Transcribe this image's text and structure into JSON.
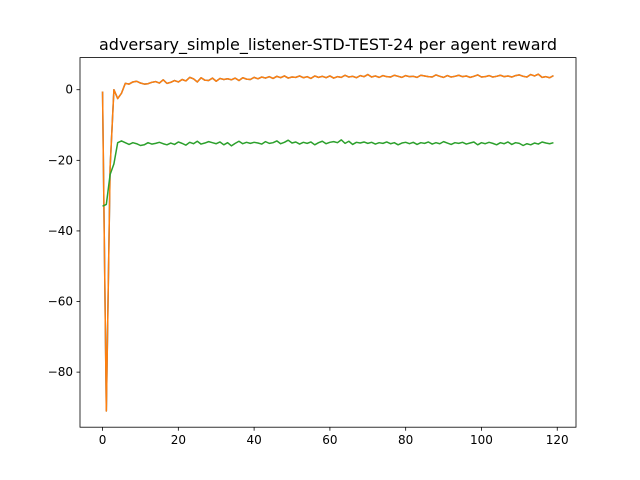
{
  "chart_data": {
    "type": "line",
    "title": "adversary_simple_listener-STD-TEST-24 per agent reward",
    "xlabel": "",
    "ylabel": "",
    "xlim": [
      -5.95,
      124.95
    ],
    "ylim": [
      -95.6,
      9.1
    ],
    "xticks": [
      0,
      20,
      40,
      60,
      80,
      100,
      120
    ],
    "yticks": [
      0,
      -20,
      -40,
      -60,
      -80
    ],
    "xtick_labels": [
      "0",
      "20",
      "40",
      "60",
      "80",
      "100",
      "120"
    ],
    "ytick_labels": [
      "0",
      "−20",
      "−40",
      "−60",
      "−80"
    ],
    "grid": false,
    "legend": "none",
    "series": [
      {
        "color": "#1f77b4",
        "x": [
          0,
          1,
          2,
          3,
          4,
          5,
          6,
          7,
          8,
          9,
          10,
          11,
          12,
          13,
          14,
          15,
          16,
          17,
          18,
          19,
          20,
          21,
          22,
          23,
          24,
          25,
          26,
          27,
          28,
          29,
          30,
          31,
          32,
          33,
          34,
          35,
          36,
          37,
          38,
          39,
          40,
          41,
          42,
          43,
          44,
          45,
          46,
          47,
          48,
          49,
          50,
          51,
          52,
          53,
          54,
          55,
          56,
          57,
          58,
          59,
          60,
          61,
          62,
          63,
          64,
          65,
          66,
          67,
          68,
          69,
          70,
          71,
          72,
          73,
          74,
          75,
          76,
          77,
          78,
          79,
          80,
          81,
          82,
          83,
          84,
          85,
          86,
          87,
          88,
          89,
          90,
          91,
          92,
          93,
          94,
          95,
          96,
          97,
          98,
          99,
          100,
          101,
          102,
          103,
          104,
          105,
          106,
          107,
          108,
          109,
          110,
          111,
          112,
          113,
          114,
          115,
          116,
          117,
          118,
          119
        ],
        "y": [
          -0.5,
          -91,
          -22,
          0,
          -2.5,
          -1,
          1.8,
          1.6,
          2.2,
          2.4,
          1.9,
          1.6,
          1.7,
          2.1,
          2.3,
          1.9,
          2.8,
          1.8,
          2.1,
          2.6,
          2.2,
          2.9,
          2.5,
          3.5,
          3.1,
          2.2,
          3.4,
          2.7,
          2.6,
          3.3,
          2.4,
          3.2,
          2.9,
          3.1,
          2.8,
          3.3,
          2.6,
          3.4,
          3.0,
          2.9,
          3.5,
          3.1,
          3.6,
          3.3,
          3.7,
          3.2,
          3.8,
          3.4,
          3.9,
          3.3,
          3.6,
          3.5,
          3.9,
          3.4,
          3.7,
          3.2,
          3.9,
          3.5,
          3.8,
          3.4,
          3.9,
          3.3,
          3.7,
          3.5,
          4.1,
          3.6,
          3.8,
          3.4,
          4.0,
          3.7,
          4.3,
          3.6,
          3.9,
          3.5,
          4.0,
          3.7,
          3.6,
          4.1,
          3.8,
          3.5,
          4.0,
          3.7,
          3.8,
          3.5,
          4.1,
          3.9,
          3.7,
          3.6,
          4.2,
          3.8,
          3.5,
          4.0,
          3.6,
          3.8,
          4.1,
          3.7,
          3.9,
          3.5,
          3.8,
          4.2,
          3.6,
          3.7,
          4.0,
          3.6,
          3.8,
          4.1,
          3.7,
          3.9,
          3.6,
          4.0,
          4.2,
          3.8,
          3.6,
          4.3,
          3.9,
          4.4,
          3.5,
          3.7,
          3.4,
          4.0
        ]
      },
      {
        "color": "#ff7f0e",
        "x": [
          0,
          1,
          2,
          3,
          4,
          5,
          6,
          7,
          8,
          9,
          10,
          11,
          12,
          13,
          14,
          15,
          16,
          17,
          18,
          19,
          20,
          21,
          22,
          23,
          24,
          25,
          26,
          27,
          28,
          29,
          30,
          31,
          32,
          33,
          34,
          35,
          36,
          37,
          38,
          39,
          40,
          41,
          42,
          43,
          44,
          45,
          46,
          47,
          48,
          49,
          50,
          51,
          52,
          53,
          54,
          55,
          56,
          57,
          58,
          59,
          60,
          61,
          62,
          63,
          64,
          65,
          66,
          67,
          68,
          69,
          70,
          71,
          72,
          73,
          74,
          75,
          76,
          77,
          78,
          79,
          80,
          81,
          82,
          83,
          84,
          85,
          86,
          87,
          88,
          89,
          90,
          91,
          92,
          93,
          94,
          95,
          96,
          97,
          98,
          99,
          100,
          101,
          102,
          103,
          104,
          105,
          106,
          107,
          108,
          109,
          110,
          111,
          112,
          113,
          114,
          115,
          116,
          117,
          118,
          119
        ],
        "y": [
          -0.5,
          -91,
          -22,
          0,
          -2.5,
          -1,
          1.8,
          1.6,
          2.2,
          2.4,
          1.9,
          1.6,
          1.7,
          2.1,
          2.3,
          1.9,
          2.8,
          1.8,
          2.1,
          2.6,
          2.2,
          2.9,
          2.5,
          3.5,
          3.1,
          2.2,
          3.4,
          2.7,
          2.6,
          3.3,
          2.4,
          3.2,
          2.9,
          3.1,
          2.8,
          3.3,
          2.6,
          3.4,
          3.0,
          2.9,
          3.5,
          3.1,
          3.6,
          3.3,
          3.7,
          3.2,
          3.8,
          3.4,
          3.9,
          3.3,
          3.6,
          3.5,
          3.9,
          3.4,
          3.7,
          3.2,
          3.9,
          3.5,
          3.8,
          3.4,
          3.9,
          3.3,
          3.7,
          3.5,
          4.1,
          3.6,
          3.8,
          3.4,
          4.0,
          3.7,
          4.3,
          3.6,
          3.9,
          3.5,
          4.0,
          3.7,
          3.6,
          4.1,
          3.8,
          3.5,
          4.0,
          3.7,
          3.8,
          3.5,
          4.1,
          3.9,
          3.7,
          3.6,
          4.2,
          3.8,
          3.5,
          4.0,
          3.6,
          3.8,
          4.1,
          3.7,
          3.9,
          3.5,
          3.8,
          4.2,
          3.6,
          3.7,
          4.0,
          3.6,
          3.8,
          4.1,
          3.7,
          3.9,
          3.6,
          4.0,
          4.2,
          3.8,
          3.6,
          4.3,
          3.9,
          4.4,
          3.5,
          3.7,
          3.4,
          4.0
        ]
      },
      {
        "color": "#2ca02c",
        "x": [
          0,
          1,
          2,
          3,
          4,
          5,
          6,
          7,
          8,
          9,
          10,
          11,
          12,
          13,
          14,
          15,
          16,
          17,
          18,
          19,
          20,
          21,
          22,
          23,
          24,
          25,
          26,
          27,
          28,
          29,
          30,
          31,
          32,
          33,
          34,
          35,
          36,
          37,
          38,
          39,
          40,
          41,
          42,
          43,
          44,
          45,
          46,
          47,
          48,
          49,
          50,
          51,
          52,
          53,
          54,
          55,
          56,
          57,
          58,
          59,
          60,
          61,
          62,
          63,
          64,
          65,
          66,
          67,
          68,
          69,
          70,
          71,
          72,
          73,
          74,
          75,
          76,
          77,
          78,
          79,
          80,
          81,
          82,
          83,
          84,
          85,
          86,
          87,
          88,
          89,
          90,
          91,
          92,
          93,
          94,
          95,
          96,
          97,
          98,
          99,
          100,
          101,
          102,
          103,
          104,
          105,
          106,
          107,
          108,
          109,
          110,
          111,
          112,
          113,
          114,
          115,
          116,
          117,
          118,
          119
        ],
        "y": [
          -33,
          -32.5,
          -24,
          -21,
          -15,
          -14.5,
          -15,
          -15.5,
          -15,
          -15.3,
          -15.8,
          -15.6,
          -15,
          -15.4,
          -15.2,
          -14.9,
          -15.3,
          -15.6,
          -15.1,
          -15.5,
          -14.8,
          -15.2,
          -15.7,
          -14.9,
          -15.3,
          -14.6,
          -15.4,
          -15.1,
          -14.7,
          -15.0,
          -15.3,
          -14.8,
          -15.6,
          -15.0,
          -15.9,
          -15.2,
          -14.6,
          -15.3,
          -14.9,
          -15.2,
          -14.9,
          -15.1,
          -15.4,
          -14.7,
          -15.2,
          -15.0,
          -14.5,
          -15.3,
          -14.9,
          -14.3,
          -15.1,
          -14.8,
          -15.4,
          -14.9,
          -15.2,
          -14.8,
          -15.6,
          -15.0,
          -14.6,
          -15.3,
          -14.9,
          -14.7,
          -15.0,
          -14.2,
          -15.2,
          -14.6,
          -15.5,
          -14.9,
          -15.1,
          -14.8,
          -15.2,
          -14.9,
          -15.4,
          -15.0,
          -15.2,
          -14.8,
          -15.3,
          -15.0,
          -15.6,
          -15.1,
          -14.9,
          -15.3,
          -14.9,
          -15.5,
          -15.0,
          -15.2,
          -14.8,
          -15.4,
          -15.0,
          -15.3,
          -14.7,
          -15.1,
          -15.5,
          -15.0,
          -15.2,
          -14.9,
          -15.4,
          -15.1,
          -14.8,
          -15.6,
          -15.0,
          -15.3,
          -14.9,
          -15.2,
          -15.6,
          -15.0,
          -15.3,
          -14.8,
          -15.5,
          -15.0,
          -15.2,
          -15.8,
          -15.3,
          -15.6,
          -15.1,
          -15.4,
          -14.8,
          -15.1,
          -15.3,
          -15.0
        ]
      }
    ]
  }
}
